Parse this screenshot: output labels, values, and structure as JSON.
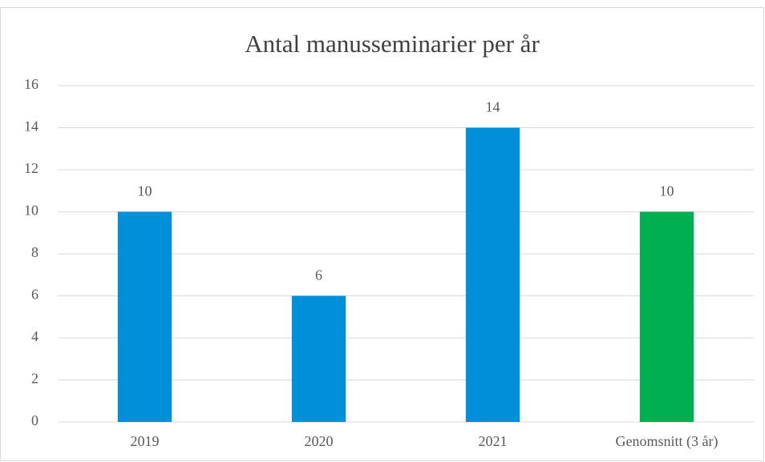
{
  "chart_data": {
    "type": "bar",
    "title": "Antal manusseminarier per år",
    "categories": [
      "2019",
      "2020",
      "2021",
      "Genomsnitt (3 år)"
    ],
    "values": [
      10,
      6,
      14,
      10
    ],
    "colors": [
      "#0090d9",
      "#0090d9",
      "#0090d9",
      "#00b050"
    ],
    "ylim": [
      0,
      16
    ],
    "yticks": [
      0,
      2,
      4,
      6,
      8,
      10,
      12,
      14,
      16
    ],
    "grid": true
  }
}
